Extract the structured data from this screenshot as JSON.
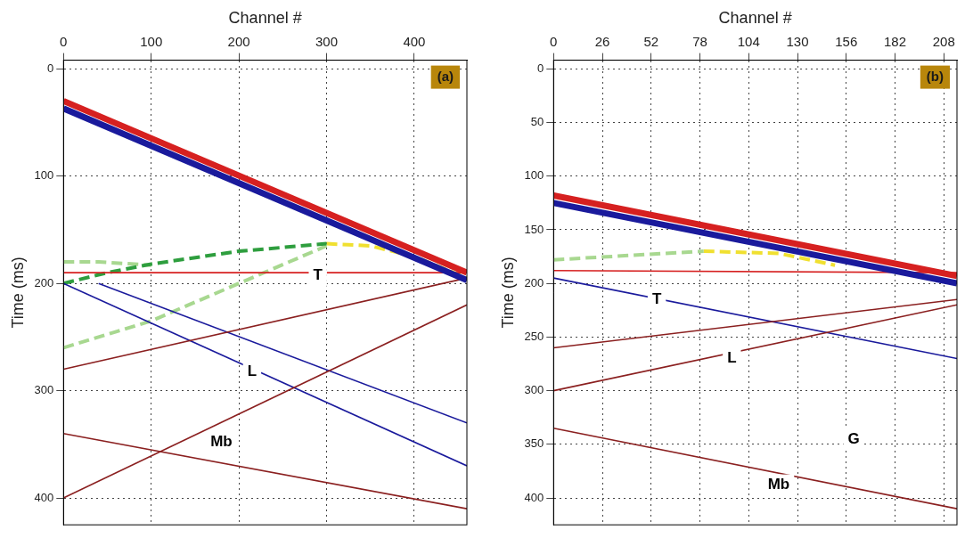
{
  "chart_data": [
    {
      "type": "line",
      "title": "(a)",
      "x_label": "Channel #",
      "y_label": "Time (ms)",
      "xlim": [
        0,
        460
      ],
      "xticks": [
        0,
        100,
        200,
        300,
        400
      ],
      "ylim": [
        -8,
        425
      ],
      "yticks": [
        0,
        100,
        200,
        300,
        400
      ],
      "grid": true,
      "series": [
        {
          "color": "#d62020",
          "line_style": "thick",
          "x": [
            0,
            460
          ],
          "values": [
            30,
            190
          ]
        },
        {
          "color": "#1a1a9c",
          "line_style": "thick",
          "x": [
            0,
            460
          ],
          "values": [
            37,
            197
          ]
        },
        {
          "color": "#d62020",
          "line_style": "solid",
          "x": [
            0,
            460
          ],
          "values": [
            190,
            190
          ]
        },
        {
          "color": "#8b2020",
          "line_style": "solid",
          "x": [
            0,
            460
          ],
          "values": [
            280,
            195
          ]
        },
        {
          "color": "#8b2020",
          "line_style": "solid",
          "x": [
            0,
            460
          ],
          "values": [
            400,
            220
          ]
        },
        {
          "color": "#1a1a9c",
          "line_style": "solid",
          "x": [
            0,
            460
          ],
          "values": [
            200,
            370
          ]
        },
        {
          "color": "#1a1a9c",
          "line_style": "solid",
          "x": [
            40,
            460
          ],
          "values": [
            200,
            330
          ]
        },
        {
          "color": "#8b2020",
          "line_style": "solid",
          "x": [
            0,
            460
          ],
          "values": [
            340,
            410
          ]
        },
        {
          "color": "#2e9e3e",
          "line_style": "dashed",
          "x": [
            0,
            50,
            100,
            200,
            300
          ],
          "values": [
            200,
            190,
            182,
            170,
            163
          ]
        },
        {
          "color": "#a8d890",
          "line_style": "dashed",
          "x": [
            0,
            40,
            100
          ],
          "values": [
            180,
            180,
            183
          ]
        },
        {
          "color": "#a8d890",
          "line_style": "dashed",
          "x": [
            0,
            100,
            200,
            300
          ],
          "values": [
            260,
            235,
            200,
            165
          ]
        },
        {
          "color": "#f0e030",
          "line_style": "dashed",
          "x": [
            300,
            350,
            400,
            460
          ],
          "values": [
            163,
            165,
            175,
            195
          ]
        }
      ],
      "annotations": [
        {
          "text": "T",
          "x": 290,
          "y": 193
        },
        {
          "text": "L",
          "x": 215,
          "y": 282
        },
        {
          "text": "Mb",
          "x": 180,
          "y": 348
        }
      ]
    },
    {
      "type": "line",
      "title": "(b)",
      "x_label": "Channel #",
      "y_label": "Time (ms)",
      "xlim": [
        0,
        215
      ],
      "xticks": [
        0,
        26,
        52,
        78,
        104,
        130,
        156,
        182,
        208
      ],
      "ylim": [
        -8,
        425
      ],
      "yticks": [
        0,
        50,
        100,
        150,
        200,
        250,
        300,
        350,
        400
      ],
      "grid": true,
      "series": [
        {
          "color": "#d62020",
          "line_style": "thick",
          "x": [
            0,
            215
          ],
          "values": [
            118,
            193
          ]
        },
        {
          "color": "#1a1a9c",
          "line_style": "thick",
          "x": [
            0,
            215
          ],
          "values": [
            125,
            200
          ]
        },
        {
          "color": "#d62020",
          "line_style": "solid",
          "x": [
            0,
            215
          ],
          "values": [
            188,
            190
          ]
        },
        {
          "color": "#8b2020",
          "line_style": "solid",
          "x": [
            0,
            215
          ],
          "values": [
            300,
            220
          ]
        },
        {
          "color": "#8b2020",
          "line_style": "solid",
          "x": [
            0,
            215
          ],
          "values": [
            260,
            215
          ]
        },
        {
          "color": "#1a1a9c",
          "line_style": "solid",
          "x": [
            0,
            215
          ],
          "values": [
            195,
            270
          ]
        },
        {
          "color": "#8b2020",
          "line_style": "solid",
          "x": [
            0,
            215
          ],
          "values": [
            335,
            410
          ]
        },
        {
          "color": "#a8d890",
          "line_style": "dashed",
          "x": [
            0,
            80
          ],
          "values": [
            178,
            170
          ]
        },
        {
          "color": "#f0e030",
          "line_style": "dashed",
          "x": [
            80,
            120,
            150
          ],
          "values": [
            170,
            172,
            183
          ]
        }
      ],
      "annotations": [
        {
          "text": "T",
          "x": 55,
          "y": 215
        },
        {
          "text": "L",
          "x": 95,
          "y": 270
        },
        {
          "text": "G",
          "x": 160,
          "y": 345
        },
        {
          "text": "Mb",
          "x": 120,
          "y": 388
        }
      ]
    }
  ]
}
